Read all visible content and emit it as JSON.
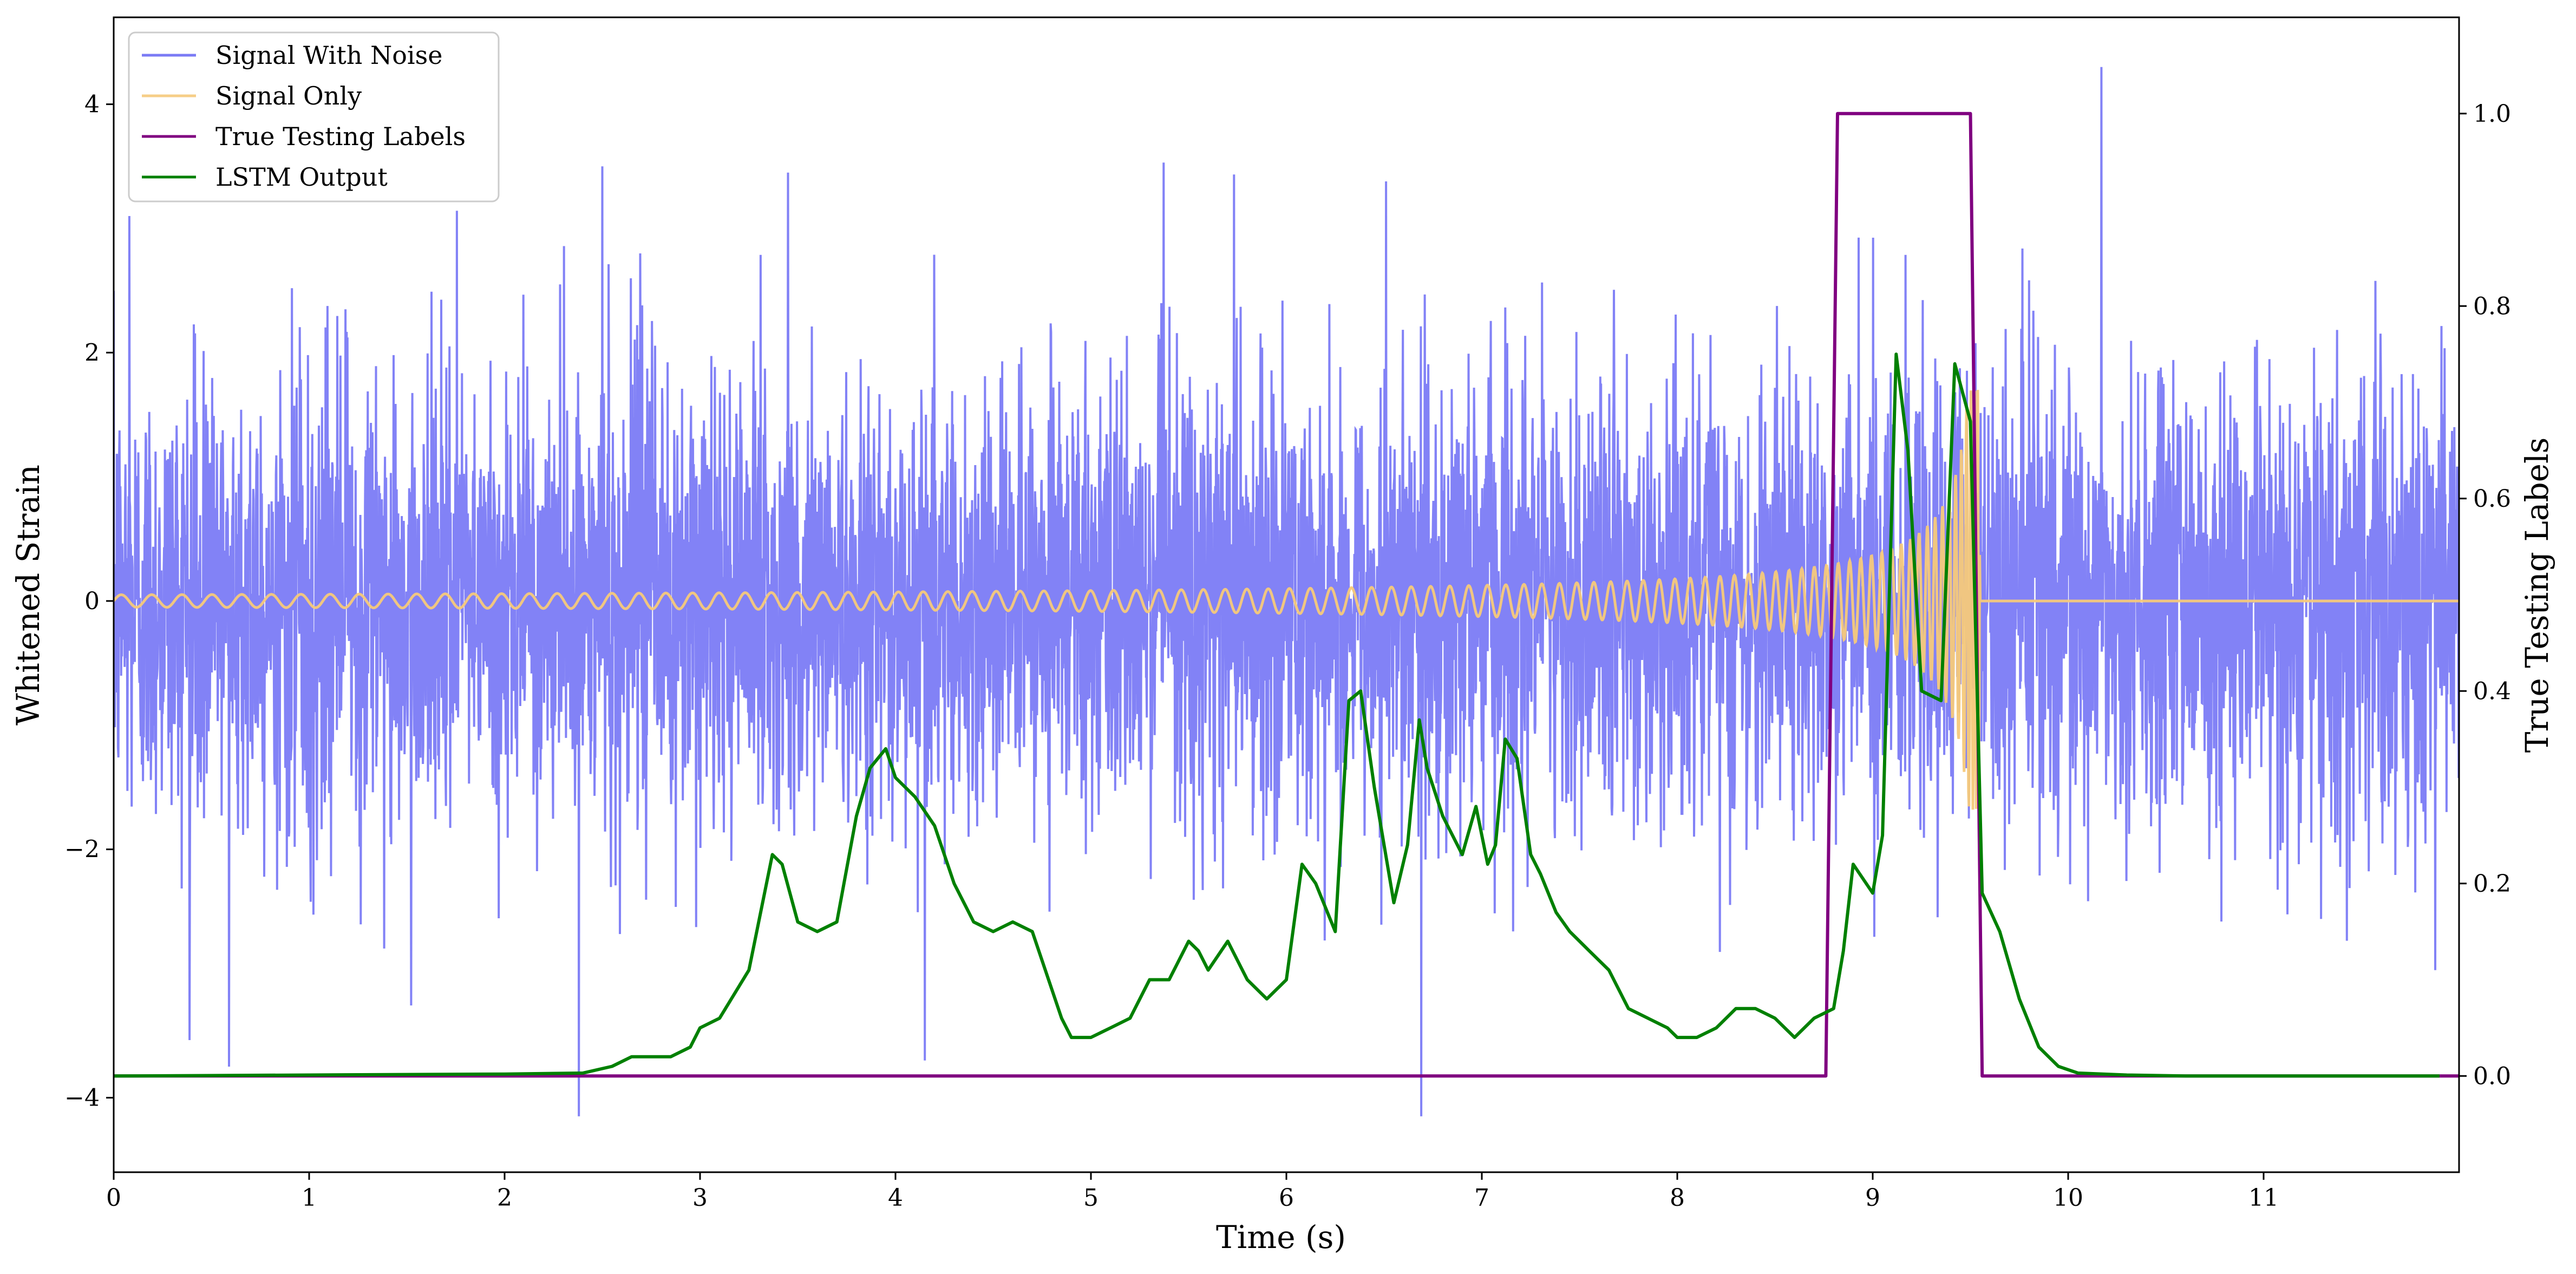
{
  "chart_data": {
    "type": "line",
    "xlabel": "Time (s)",
    "ylabel_left": "Whitened Strain",
    "ylabel_right": "True Testing Labels",
    "xlim": [
      0,
      12
    ],
    "ylim_left": [
      -4.6,
      4.7
    ],
    "ylim_right": [
      -0.1,
      1.1
    ],
    "x_ticks": [
      "0",
      "1",
      "2",
      "3",
      "4",
      "5",
      "6",
      "7",
      "8",
      "9",
      "10",
      "11"
    ],
    "y_left_ticks": [
      "−4",
      "−2",
      "0",
      "2",
      "4"
    ],
    "y_right_ticks": [
      "0.0",
      "0.2",
      "0.4",
      "0.6",
      "0.8",
      "1.0"
    ],
    "grid": false,
    "legend_placement": "top-left",
    "series": [
      {
        "name": "Signal With Noise",
        "axis": "left",
        "color": "#7b7bf5",
        "generated": "gaussian-noise",
        "sigma": 0.9,
        "sample_rate_hz": 500,
        "spikes": [
          {
            "x": 0.59,
            "y": -3.75
          },
          {
            "x": 2.38,
            "y": -4.15
          },
          {
            "x": 6.69,
            "y": -4.15
          },
          {
            "x": 10.17,
            "y": 4.3
          },
          {
            "x": 2.5,
            "y": 3.5
          },
          {
            "x": 3.45,
            "y": 3.45
          },
          {
            "x": 4.15,
            "y": -3.7
          },
          {
            "x": 0.08,
            "y": 3.1
          }
        ]
      },
      {
        "name": "Signal Only",
        "axis": "left",
        "color": "#f5c97a",
        "generated": "inspiral-chirp",
        "merger_time": 9.55,
        "peak_amplitude": 1.7
      },
      {
        "name": "True Testing Labels",
        "axis": "right",
        "color": "#800080",
        "x": [
          0,
          8.76,
          8.82,
          9.5,
          9.56,
          12.0
        ],
        "values": [
          0,
          0,
          1,
          1,
          0,
          0
        ]
      },
      {
        "name": "LSTM Output",
        "axis": "right",
        "color": "#008000",
        "x": [
          0,
          1.0,
          2.0,
          2.4,
          2.55,
          2.65,
          2.75,
          2.85,
          2.95,
          3.0,
          3.1,
          3.25,
          3.37,
          3.42,
          3.5,
          3.6,
          3.7,
          3.8,
          3.87,
          3.95,
          4.0,
          4.1,
          4.2,
          4.3,
          4.4,
          4.5,
          4.6,
          4.7,
          4.85,
          4.9,
          5.0,
          5.1,
          5.2,
          5.3,
          5.4,
          5.5,
          5.55,
          5.6,
          5.7,
          5.8,
          5.9,
          6.0,
          6.08,
          6.15,
          6.25,
          6.32,
          6.38,
          6.45,
          6.55,
          6.62,
          6.68,
          6.72,
          6.8,
          6.9,
          6.97,
          7.03,
          7.07,
          7.12,
          7.18,
          7.25,
          7.3,
          7.38,
          7.45,
          7.55,
          7.65,
          7.75,
          7.85,
          7.95,
          8.0,
          8.1,
          8.2,
          8.3,
          8.4,
          8.5,
          8.6,
          8.7,
          8.8,
          8.85,
          8.9,
          9.0,
          9.05,
          9.12,
          9.18,
          9.25,
          9.35,
          9.42,
          9.5,
          9.56,
          9.65,
          9.75,
          9.85,
          9.95,
          10.05,
          10.3,
          10.6,
          11.0,
          11.9
        ],
        "values": [
          0.0,
          0.001,
          0.002,
          0.003,
          0.01,
          0.02,
          0.02,
          0.02,
          0.03,
          0.05,
          0.06,
          0.11,
          0.23,
          0.22,
          0.16,
          0.15,
          0.16,
          0.27,
          0.32,
          0.34,
          0.31,
          0.29,
          0.26,
          0.2,
          0.16,
          0.15,
          0.16,
          0.15,
          0.06,
          0.04,
          0.04,
          0.05,
          0.06,
          0.1,
          0.1,
          0.14,
          0.13,
          0.11,
          0.14,
          0.1,
          0.08,
          0.1,
          0.22,
          0.2,
          0.15,
          0.39,
          0.4,
          0.3,
          0.18,
          0.24,
          0.37,
          0.32,
          0.27,
          0.23,
          0.28,
          0.22,
          0.24,
          0.35,
          0.33,
          0.23,
          0.21,
          0.17,
          0.15,
          0.13,
          0.11,
          0.07,
          0.06,
          0.05,
          0.04,
          0.04,
          0.05,
          0.07,
          0.07,
          0.06,
          0.04,
          0.06,
          0.07,
          0.13,
          0.22,
          0.19,
          0.25,
          0.75,
          0.65,
          0.4,
          0.39,
          0.74,
          0.68,
          0.19,
          0.15,
          0.08,
          0.03,
          0.01,
          0.003,
          0.001,
          0.0,
          0.0,
          0.0
        ]
      }
    ]
  }
}
